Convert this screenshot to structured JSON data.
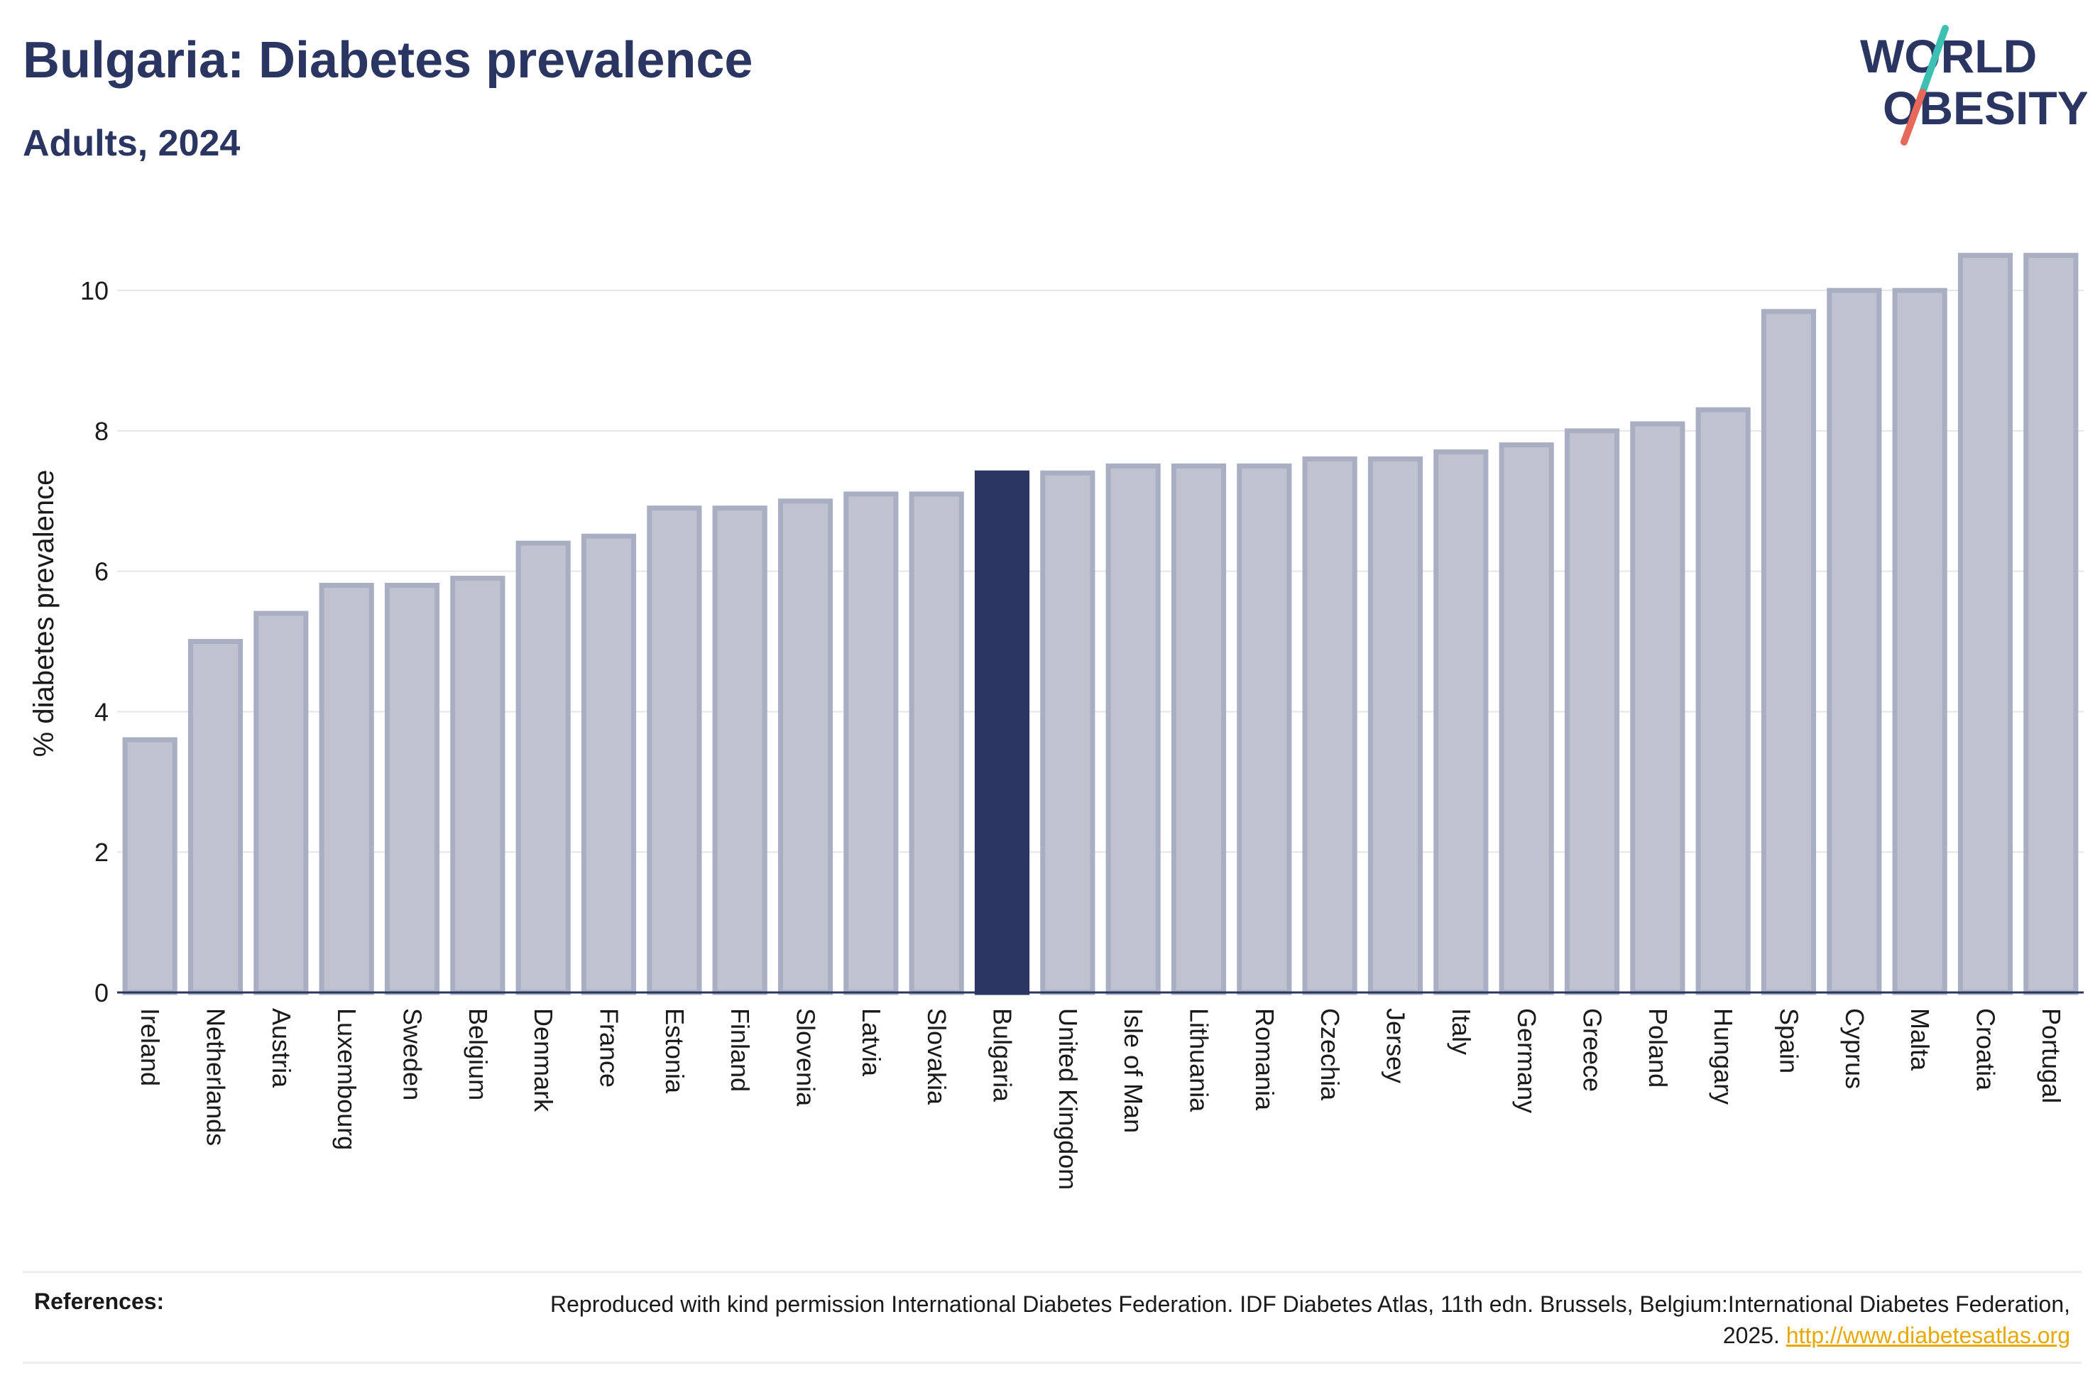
{
  "header": {
    "title": "Bulgaria: Diabetes prevalence",
    "subtitle": "Adults, 2024"
  },
  "logo": {
    "line1": "WORLD",
    "line2": "OBESITY",
    "colors": {
      "text": "#2a3561",
      "slash_top": "#3dbfb2",
      "slash_bottom": "#e8685a"
    }
  },
  "chart_data": {
    "type": "bar",
    "ylabel": "% diabetes prevalence",
    "xlabel": "",
    "ylim": [
      0,
      10.8
    ],
    "yticks": [
      0,
      2,
      4,
      6,
      8,
      10
    ],
    "grid": true,
    "highlight": "Bulgaria",
    "colors": {
      "bar": "#bfc2cf",
      "bar_edge": "#a9aec2",
      "highlight": "#2a3561"
    },
    "categories": [
      "Ireland",
      "Netherlands",
      "Austria",
      "Luxembourg",
      "Sweden",
      "Belgium",
      "Denmark",
      "France",
      "Estonia",
      "Finland",
      "Slovenia",
      "Latvia",
      "Slovakia",
      "Bulgaria",
      "United Kingdom",
      "Isle of Man",
      "Lithuania",
      "Romania",
      "Czechia",
      "Jersey",
      "Italy",
      "Germany",
      "Greece",
      "Poland",
      "Hungary",
      "Spain",
      "Cyprus",
      "Malta",
      "Croatia",
      "Portugal"
    ],
    "values": [
      3.6,
      5.0,
      5.4,
      5.8,
      5.8,
      5.9,
      6.4,
      6.5,
      6.9,
      6.9,
      7.0,
      7.1,
      7.1,
      7.4,
      7.4,
      7.5,
      7.5,
      7.5,
      7.6,
      7.6,
      7.7,
      7.8,
      8.0,
      8.1,
      8.3,
      9.7,
      10.0,
      10.0,
      10.5,
      10.5
    ]
  },
  "references": {
    "label": "References:",
    "text": "Reproduced with kind permission International Diabetes Federation. IDF Diabetes Atlas, 11th edn. Brussels, Belgium:International Diabetes Federation, 2025.",
    "link": "http://www.diabetesatlas.org"
  }
}
